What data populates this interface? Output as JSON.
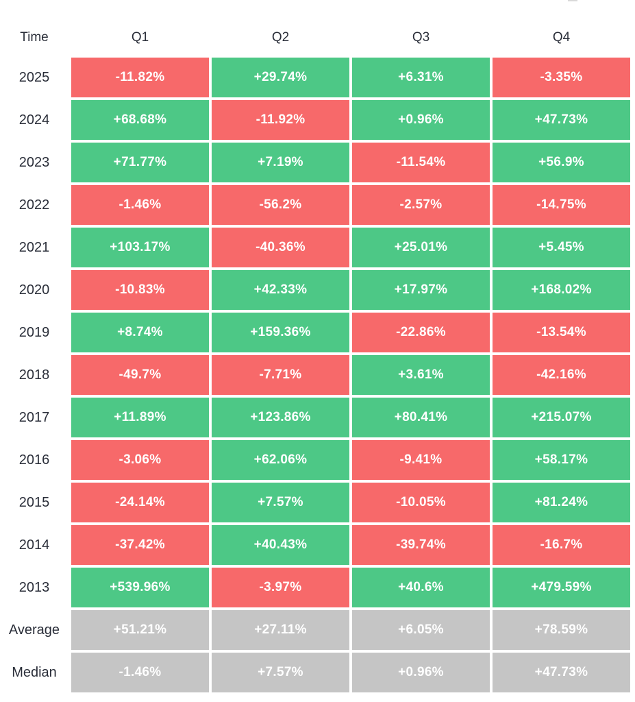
{
  "colors": {
    "positive": "#4dc886",
    "negative": "#f7696a",
    "aggregate": "#c5c5c5",
    "label_text": "#2a2e39",
    "cell_text": "#ffffff"
  },
  "table": {
    "corner_label": "Time",
    "columns": [
      "Q1",
      "Q2",
      "Q3",
      "Q4"
    ],
    "rows": [
      {
        "label": "2025",
        "type": "year",
        "cells": [
          "-11.82%",
          "+29.74%",
          "+6.31%",
          "-3.35%"
        ]
      },
      {
        "label": "2024",
        "type": "year",
        "cells": [
          "+68.68%",
          "-11.92%",
          "+0.96%",
          "+47.73%"
        ]
      },
      {
        "label": "2023",
        "type": "year",
        "cells": [
          "+71.77%",
          "+7.19%",
          "-11.54%",
          "+56.9%"
        ]
      },
      {
        "label": "2022",
        "type": "year",
        "cells": [
          "-1.46%",
          "-56.2%",
          "-2.57%",
          "-14.75%"
        ]
      },
      {
        "label": "2021",
        "type": "year",
        "cells": [
          "+103.17%",
          "-40.36%",
          "+25.01%",
          "+5.45%"
        ]
      },
      {
        "label": "2020",
        "type": "year",
        "cells": [
          "-10.83%",
          "+42.33%",
          "+17.97%",
          "+168.02%"
        ]
      },
      {
        "label": "2019",
        "type": "year",
        "cells": [
          "+8.74%",
          "+159.36%",
          "-22.86%",
          "-13.54%"
        ]
      },
      {
        "label": "2018",
        "type": "year",
        "cells": [
          "-49.7%",
          "-7.71%",
          "+3.61%",
          "-42.16%"
        ]
      },
      {
        "label": "2017",
        "type": "year",
        "cells": [
          "+11.89%",
          "+123.86%",
          "+80.41%",
          "+215.07%"
        ]
      },
      {
        "label": "2016",
        "type": "year",
        "cells": [
          "-3.06%",
          "+62.06%",
          "-9.41%",
          "+58.17%"
        ]
      },
      {
        "label": "2015",
        "type": "year",
        "cells": [
          "-24.14%",
          "+7.57%",
          "-10.05%",
          "+81.24%"
        ]
      },
      {
        "label": "2014",
        "type": "year",
        "cells": [
          "-37.42%",
          "+40.43%",
          "-39.74%",
          "-16.7%"
        ]
      },
      {
        "label": "2013",
        "type": "year",
        "cells": [
          "+539.96%",
          "-3.97%",
          "+40.6%",
          "+479.59%"
        ]
      },
      {
        "label": "Average",
        "type": "aggregate",
        "cells": [
          "+51.21%",
          "+27.11%",
          "+6.05%",
          "+78.59%"
        ]
      },
      {
        "label": "Median",
        "type": "aggregate",
        "cells": [
          "-1.46%",
          "+7.57%",
          "+0.96%",
          "+47.73%"
        ]
      }
    ]
  },
  "chart_data": {
    "type": "heatmap",
    "x_categories": [
      "Q1",
      "Q2",
      "Q3",
      "Q4"
    ],
    "y_categories": [
      "2025",
      "2024",
      "2023",
      "2022",
      "2021",
      "2020",
      "2019",
      "2018",
      "2017",
      "2016",
      "2015",
      "2014",
      "2013",
      "Average",
      "Median"
    ],
    "values": [
      [
        -11.82,
        29.74,
        6.31,
        -3.35
      ],
      [
        68.68,
        -11.92,
        0.96,
        47.73
      ],
      [
        71.77,
        7.19,
        -11.54,
        56.9
      ],
      [
        -1.46,
        -56.2,
        -2.57,
        -14.75
      ],
      [
        103.17,
        -40.36,
        25.01,
        5.45
      ],
      [
        -10.83,
        42.33,
        17.97,
        168.02
      ],
      [
        8.74,
        159.36,
        -22.86,
        -13.54
      ],
      [
        -49.7,
        -7.71,
        3.61,
        -42.16
      ],
      [
        11.89,
        123.86,
        80.41,
        215.07
      ],
      [
        -3.06,
        62.06,
        -9.41,
        58.17
      ],
      [
        -24.14,
        7.57,
        -10.05,
        81.24
      ],
      [
        -37.42,
        40.43,
        -39.74,
        -16.7
      ],
      [
        539.96,
        -3.97,
        40.6,
        479.59
      ],
      [
        51.21,
        27.11,
        6.05,
        78.59
      ],
      [
        -1.46,
        7.57,
        0.96,
        47.73
      ]
    ],
    "value_format": "signed_percent",
    "color_rule": "green if positive, red if negative, gray for Average/Median rows",
    "legend": "none",
    "grid": false
  }
}
